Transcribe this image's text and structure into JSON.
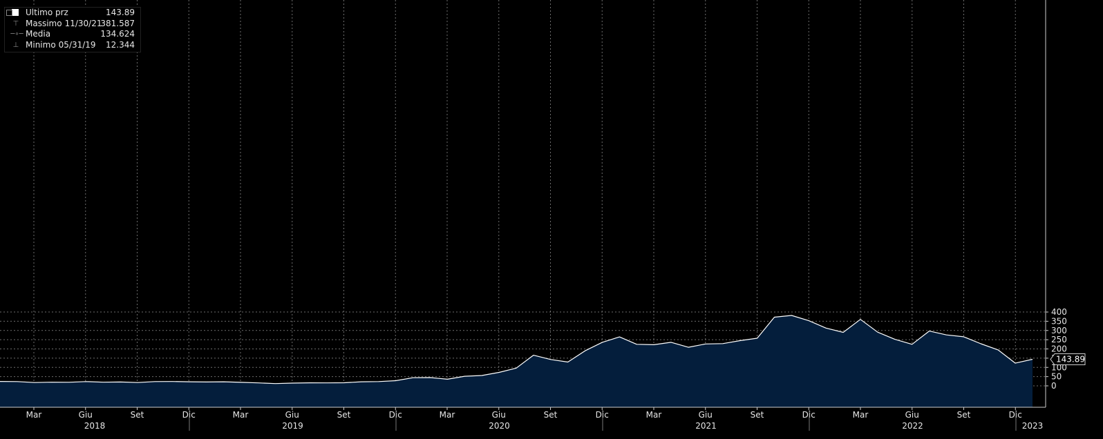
{
  "legend": {
    "last_label": "Ultimo prz",
    "last_value": "143.89",
    "high_label": "Massimo",
    "high_date": "11/30/21",
    "high_value": "381.587",
    "avg_label": "Media",
    "avg_value": "134.624",
    "low_label": "Minimo",
    "low_date": "05/31/19",
    "low_value": "12.344"
  },
  "price_tag": "143.89",
  "colors": {
    "line": "#ffffff",
    "fill": "#041e3c",
    "grid": "#8a8a8a",
    "background": "#000000",
    "text": "#e6e6e6"
  },
  "chart_data": {
    "type": "area",
    "x_tick_labels": [
      "Mar",
      "Giu",
      "Set",
      "Dic",
      "Mar",
      "Giu",
      "Set",
      "Dic",
      "Mar",
      "Giu",
      "Set",
      "Dic",
      "Mar",
      "Giu",
      "Set",
      "Dic",
      "Mar",
      "Giu",
      "Set",
      "Dic"
    ],
    "year_labels": [
      "2018",
      "2019",
      "2020",
      "2021",
      "2022",
      "2023"
    ],
    "y_ticks": [
      0,
      50,
      100,
      150,
      200,
      250,
      300,
      350,
      400
    ],
    "ylim": [
      -20,
      415
    ],
    "grid": true,
    "y_axis_side": "right",
    "series": [
      {
        "values": [
          24,
          23,
          18,
          20,
          19.5,
          23,
          20,
          21,
          18,
          23,
          23.5,
          22,
          21,
          22,
          19,
          16,
          12.3,
          15,
          16.5,
          16,
          17,
          22,
          23,
          28,
          44,
          45,
          36,
          52,
          56,
          73,
          96,
          166,
          143,
          129,
          190,
          236,
          265,
          225,
          223,
          236,
          209,
          227,
          229,
          245,
          258,
          372,
          381.6,
          353,
          313,
          290,
          360,
          291,
          252,
          225,
          297,
          276,
          266,
          228,
          195,
          123,
          143.89
        ]
      }
    ]
  }
}
